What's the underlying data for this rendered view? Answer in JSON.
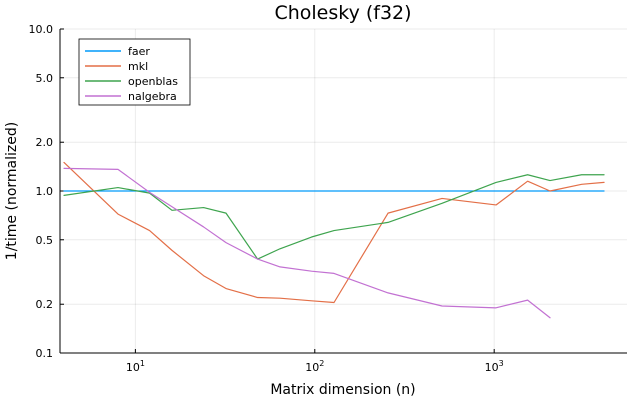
{
  "chart_data": {
    "type": "line",
    "title": "Cholesky (f32)",
    "xlabel": "Matrix dimension (n)",
    "ylabel": "1/time (normalized)",
    "xscale": "log",
    "yscale": "log",
    "xlim": [
      3.8,
      5500
    ],
    "ylim": [
      0.1,
      10.0
    ],
    "x_ticks": [
      {
        "value": 10,
        "base": "10",
        "exp": "1"
      },
      {
        "value": 100,
        "base": "10",
        "exp": "2"
      },
      {
        "value": 1000,
        "base": "10",
        "exp": "3"
      }
    ],
    "y_ticks": [
      {
        "value": 0.1,
        "label": "0.1"
      },
      {
        "value": 0.2,
        "label": "0.2"
      },
      {
        "value": 0.5,
        "label": "0.5"
      },
      {
        "value": 1.0,
        "label": "1.0"
      },
      {
        "value": 2.0,
        "label": "2.0"
      },
      {
        "value": 5.0,
        "label": "5.0"
      },
      {
        "value": 10.0,
        "label": "10.0"
      }
    ],
    "grid": true,
    "legend_position": "top-left",
    "series": [
      {
        "name": "faer",
        "color": "#009AFA",
        "x": [
          4,
          8,
          12,
          16,
          24,
          32,
          48,
          64,
          96,
          128,
          256,
          512,
          1024,
          1536,
          2048,
          3072,
          4096
        ],
        "y": [
          1.0,
          1.0,
          1.0,
          1.0,
          1.0,
          1.0,
          1.0,
          1.0,
          1.0,
          1.0,
          1.0,
          1.0,
          1.0,
          1.0,
          1.0,
          1.0,
          1.0
        ]
      },
      {
        "name": "mkl",
        "color": "#E36F47",
        "x": [
          4,
          8,
          12,
          16,
          24,
          32,
          48,
          64,
          96,
          128,
          256,
          512,
          1024,
          1536,
          2048,
          3072,
          4096
        ],
        "y": [
          1.5,
          0.72,
          0.57,
          0.43,
          0.3,
          0.25,
          0.22,
          0.218,
          0.21,
          0.205,
          0.73,
          0.9,
          0.82,
          1.15,
          1.0,
          1.1,
          1.13
        ]
      },
      {
        "name": "openblas",
        "color": "#3EA44E",
        "x": [
          4,
          8,
          12,
          16,
          24,
          32,
          48,
          64,
          96,
          128,
          256,
          512,
          1024,
          1536,
          2048,
          3072,
          4096
        ],
        "y": [
          0.94,
          1.05,
          0.97,
          0.76,
          0.79,
          0.73,
          0.38,
          0.44,
          0.52,
          0.57,
          0.64,
          0.84,
          1.13,
          1.26,
          1.16,
          1.26,
          1.26
        ]
      },
      {
        "name": "nalgebra",
        "color": "#C271D2",
        "x": [
          4,
          8,
          12,
          16,
          24,
          32,
          48,
          64,
          96,
          128,
          256,
          512,
          1024,
          1536,
          2048
        ],
        "y": [
          1.38,
          1.36,
          0.98,
          0.8,
          0.6,
          0.48,
          0.38,
          0.34,
          0.32,
          0.31,
          0.235,
          0.195,
          0.19,
          0.212,
          0.165
        ]
      }
    ]
  }
}
